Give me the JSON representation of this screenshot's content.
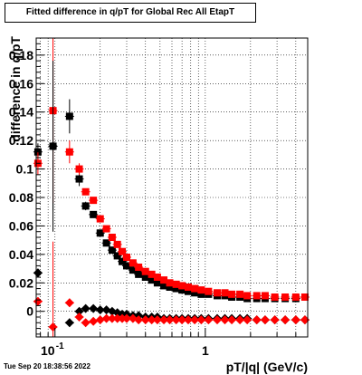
{
  "chart_data": {
    "type": "scatter",
    "title": "Fitted difference in q/pT for Global Rec All EtapT",
    "xlabel": "pT/|q| (GeV/c)",
    "ylabel": "difference in q/pT",
    "timestamp": "Tue Sep 20 18:38:56 2022",
    "x_scale": "log",
    "xlim": [
      0.075,
      4.8
    ],
    "ylim": [
      -0.018,
      0.192
    ],
    "grid": true,
    "x_ticks": [
      {
        "value": 0.1,
        "label": "10^-1"
      },
      {
        "value": 1,
        "label": "1"
      }
    ],
    "y_ticks": [
      {
        "value": 0,
        "label": "0"
      },
      {
        "value": 0.02,
        "label": "0.02"
      },
      {
        "value": 0.04,
        "label": "0.04"
      },
      {
        "value": 0.06,
        "label": "0.06"
      },
      {
        "value": 0.08,
        "label": "0.08"
      },
      {
        "value": 0.1,
        "label": "0.1"
      },
      {
        "value": 0.12,
        "label": "0.12"
      },
      {
        "value": 0.14,
        "label": "0.14"
      },
      {
        "value": 0.16,
        "label": "0.16"
      },
      {
        "value": 0.18,
        "label": "0.18"
      }
    ],
    "colors": {
      "black": "#000000",
      "red": "#ff0000"
    },
    "series": [
      {
        "color": "#000000",
        "marker": "square",
        "points": [
          [
            0.077,
            0.112
          ],
          [
            0.097,
            0.116
          ],
          [
            0.125,
            0.137
          ],
          [
            0.145,
            0.093
          ],
          [
            0.16,
            0.074
          ],
          [
            0.18,
            0.068
          ],
          [
            0.2,
            0.055
          ],
          [
            0.22,
            0.048
          ],
          [
            0.24,
            0.043
          ],
          [
            0.26,
            0.039
          ],
          [
            0.28,
            0.035
          ],
          [
            0.3,
            0.032
          ],
          [
            0.33,
            0.029
          ],
          [
            0.36,
            0.026
          ],
          [
            0.4,
            0.024
          ],
          [
            0.44,
            0.022
          ],
          [
            0.48,
            0.02
          ],
          [
            0.53,
            0.018
          ],
          [
            0.58,
            0.017
          ],
          [
            0.64,
            0.016
          ],
          [
            0.7,
            0.015
          ],
          [
            0.77,
            0.014
          ],
          [
            0.85,
            0.013
          ],
          [
            0.94,
            0.012
          ],
          [
            1.05,
            0.012
          ],
          [
            1.2,
            0.011
          ],
          [
            1.35,
            0.011
          ],
          [
            1.5,
            0.01
          ],
          [
            1.7,
            0.01
          ],
          [
            1.9,
            0.009
          ],
          [
            2.2,
            0.009
          ],
          [
            2.5,
            0.009
          ],
          [
            2.9,
            0.009
          ],
          [
            3.4,
            0.009
          ],
          [
            4.0,
            0.009
          ]
        ],
        "errors": [
          0.006,
          0.045,
          0.012,
          0.005,
          0.003,
          0.002,
          0.001,
          0.001,
          0.001,
          0.001,
          0.001,
          0.001,
          0.001,
          0.001,
          0.001,
          0.001,
          0.001,
          0.001,
          0.001,
          0.001,
          0.001,
          0.001,
          0.001,
          0.001,
          0.001,
          0.001,
          0.001,
          0.001,
          0.001,
          0.001,
          0.001,
          0.001,
          0.001,
          0.001,
          0.001
        ]
      },
      {
        "color": "#ff0000",
        "marker": "square",
        "points": [
          [
            0.077,
            0.104
          ],
          [
            0.097,
            0.141
          ],
          [
            0.125,
            0.112
          ],
          [
            0.145,
            0.1
          ],
          [
            0.16,
            0.084
          ],
          [
            0.18,
            0.078
          ],
          [
            0.2,
            0.065
          ],
          [
            0.22,
            0.058
          ],
          [
            0.24,
            0.052
          ],
          [
            0.26,
            0.047
          ],
          [
            0.28,
            0.042
          ],
          [
            0.3,
            0.038
          ],
          [
            0.33,
            0.034
          ],
          [
            0.36,
            0.031
          ],
          [
            0.4,
            0.028
          ],
          [
            0.44,
            0.026
          ],
          [
            0.48,
            0.024
          ],
          [
            0.53,
            0.022
          ],
          [
            0.58,
            0.02
          ],
          [
            0.64,
            0.019
          ],
          [
            0.7,
            0.018
          ],
          [
            0.77,
            0.017
          ],
          [
            0.85,
            0.016
          ],
          [
            0.94,
            0.015
          ],
          [
            1.05,
            0.014
          ],
          [
            1.2,
            0.013
          ],
          [
            1.35,
            0.013
          ],
          [
            1.5,
            0.012
          ],
          [
            1.7,
            0.012
          ],
          [
            1.9,
            0.011
          ],
          [
            2.2,
            0.011
          ],
          [
            2.5,
            0.011
          ],
          [
            2.9,
            0.01
          ],
          [
            3.4,
            0.01
          ],
          [
            4.0,
            0.01
          ],
          [
            4.6,
            0.01
          ]
        ],
        "errors": [
          0.008,
          0.065,
          0.008,
          0.004,
          0.002,
          0.002,
          0.001,
          0.001,
          0.001,
          0.001,
          0.001,
          0.001,
          0.001,
          0.001,
          0.001,
          0.001,
          0.001,
          0.001,
          0.001,
          0.001,
          0.001,
          0.001,
          0.001,
          0.001,
          0.001,
          0.001,
          0.001,
          0.001,
          0.001,
          0.001,
          0.001,
          0.001,
          0.001,
          0.001,
          0.001,
          0.001
        ]
      },
      {
        "color": "#000000",
        "marker": "diamond",
        "points": [
          [
            0.077,
            0.027
          ],
          [
            0.097,
            0.116
          ],
          [
            0.125,
            -0.008
          ],
          [
            0.145,
            0.0
          ],
          [
            0.16,
            0.002
          ],
          [
            0.18,
            0.002
          ],
          [
            0.2,
            0.001
          ],
          [
            0.22,
            0.001
          ],
          [
            0.24,
            0.0
          ],
          [
            0.26,
            -0.001
          ],
          [
            0.28,
            -0.002
          ],
          [
            0.3,
            -0.002
          ],
          [
            0.33,
            -0.003
          ],
          [
            0.36,
            -0.003
          ],
          [
            0.4,
            -0.004
          ],
          [
            0.44,
            -0.004
          ],
          [
            0.48,
            -0.004
          ],
          [
            0.53,
            -0.005
          ],
          [
            0.58,
            -0.005
          ],
          [
            0.64,
            -0.005
          ],
          [
            0.7,
            -0.005
          ],
          [
            0.77,
            -0.005
          ],
          [
            0.85,
            -0.005
          ],
          [
            0.94,
            -0.005
          ],
          [
            1.05,
            -0.005
          ],
          [
            1.2,
            -0.005
          ],
          [
            1.35,
            -0.005
          ],
          [
            1.5,
            -0.005
          ],
          [
            1.7,
            -0.005
          ],
          [
            1.9,
            -0.005
          ],
          [
            2.2,
            -0.006
          ],
          [
            2.5,
            -0.006
          ],
          [
            2.9,
            -0.006
          ],
          [
            3.4,
            -0.006
          ],
          [
            4.0,
            -0.006
          ],
          [
            4.6,
            -0.006
          ]
        ],
        "errors": [
          0.003,
          0.06,
          0.003,
          0.002,
          0.001,
          0.001,
          0.001,
          0.001,
          0.001,
          0.001,
          0.001,
          0.001,
          0.001,
          0.001,
          0.001,
          0.001,
          0.001,
          0.001,
          0.001,
          0.001,
          0.001,
          0.001,
          0.001,
          0.001,
          0.001,
          0.001,
          0.001,
          0.001,
          0.001,
          0.001,
          0.001,
          0.001,
          0.001,
          0.001,
          0.001,
          0.001
        ]
      },
      {
        "color": "#ff0000",
        "marker": "diamond",
        "points": [
          [
            0.077,
            0.007
          ],
          [
            0.097,
            -0.011
          ],
          [
            0.125,
            0.006
          ],
          [
            0.145,
            -0.004
          ],
          [
            0.16,
            -0.008
          ],
          [
            0.18,
            -0.007
          ],
          [
            0.2,
            -0.006
          ],
          [
            0.22,
            -0.005
          ],
          [
            0.24,
            -0.005
          ],
          [
            0.26,
            -0.005
          ],
          [
            0.28,
            -0.005
          ],
          [
            0.3,
            -0.005
          ],
          [
            0.33,
            -0.005
          ],
          [
            0.36,
            -0.006
          ],
          [
            0.4,
            -0.006
          ],
          [
            0.44,
            -0.006
          ],
          [
            0.48,
            -0.006
          ],
          [
            0.53,
            -0.006
          ],
          [
            0.58,
            -0.006
          ],
          [
            0.64,
            -0.006
          ],
          [
            0.7,
            -0.006
          ],
          [
            0.77,
            -0.006
          ],
          [
            0.85,
            -0.006
          ],
          [
            0.94,
            -0.006
          ],
          [
            1.05,
            -0.006
          ],
          [
            1.2,
            -0.006
          ],
          [
            1.35,
            -0.006
          ],
          [
            1.5,
            -0.006
          ],
          [
            1.7,
            -0.006
          ],
          [
            1.9,
            -0.006
          ],
          [
            2.2,
            -0.006
          ],
          [
            2.5,
            -0.006
          ],
          [
            2.9,
            -0.006
          ],
          [
            3.4,
            -0.006
          ],
          [
            4.0,
            -0.006
          ],
          [
            4.6,
            -0.006
          ]
        ],
        "errors": [
          0.003,
          0.06,
          0.003,
          0.002,
          0.001,
          0.001,
          0.001,
          0.001,
          0.001,
          0.001,
          0.001,
          0.001,
          0.001,
          0.001,
          0.001,
          0.001,
          0.001,
          0.001,
          0.001,
          0.001,
          0.001,
          0.001,
          0.001,
          0.001,
          0.001,
          0.001,
          0.001,
          0.001,
          0.001,
          0.001,
          0.001,
          0.001,
          0.001,
          0.001,
          0.001,
          0.001
        ]
      }
    ]
  }
}
